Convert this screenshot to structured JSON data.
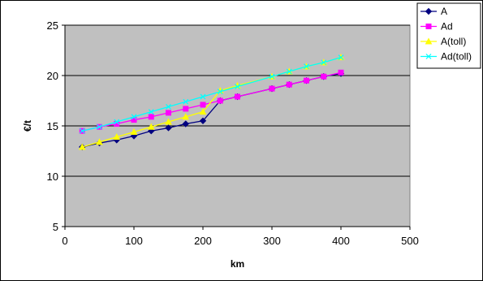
{
  "chart_data": {
    "type": "line",
    "title": "",
    "xlabel": "km",
    "ylabel": "€/t",
    "xlim": [
      0,
      500
    ],
    "ylim": [
      5,
      25
    ],
    "xticks": [
      0,
      100,
      200,
      300,
      400,
      500
    ],
    "yticks": [
      5,
      10,
      15,
      20,
      25
    ],
    "grid": "horizontal",
    "plot_background": "#c0c0c0",
    "legend_position": "top-right",
    "series": [
      {
        "name": "A",
        "color": "#000080",
        "marker": "diamond",
        "x": [
          25,
          50,
          75,
          100,
          125,
          150,
          175,
          200,
          225,
          250,
          300,
          325,
          350,
          375,
          400
        ],
        "y": [
          12.9,
          13.3,
          13.6,
          14.0,
          14.5,
          14.8,
          15.2,
          15.5,
          17.5,
          17.9,
          18.7,
          19.1,
          19.5,
          19.9,
          20.2
        ]
      },
      {
        "name": "Ad",
        "color": "#ff00ff",
        "marker": "square",
        "x": [
          25,
          50,
          75,
          100,
          125,
          150,
          175,
          200,
          225,
          250,
          300,
          325,
          350,
          375,
          400
        ],
        "y": [
          14.5,
          14.9,
          15.2,
          15.6,
          15.9,
          16.3,
          16.7,
          17.1,
          17.5,
          17.9,
          18.7,
          19.1,
          19.5,
          19.9,
          20.3
        ]
      },
      {
        "name": "A(toll)",
        "color": "#ffff00",
        "marker": "triangle",
        "x": [
          25,
          50,
          75,
          100,
          125,
          150,
          175,
          200,
          225,
          250,
          300,
          325,
          350,
          375,
          400
        ],
        "y": [
          12.9,
          13.4,
          13.9,
          14.4,
          14.9,
          15.4,
          15.9,
          16.4,
          18.5,
          19.0,
          19.9,
          20.4,
          20.9,
          21.3,
          21.8
        ]
      },
      {
        "name": "Ad(toll)",
        "color": "#00ffff",
        "marker": "x",
        "x": [
          25,
          50,
          75,
          100,
          125,
          150,
          175,
          200,
          225,
          250,
          300,
          325,
          350,
          375,
          400
        ],
        "y": [
          14.5,
          14.9,
          15.4,
          15.9,
          16.4,
          16.9,
          17.4,
          17.9,
          18.4,
          18.9,
          19.9,
          20.4,
          20.9,
          21.3,
          21.8
        ]
      }
    ]
  }
}
